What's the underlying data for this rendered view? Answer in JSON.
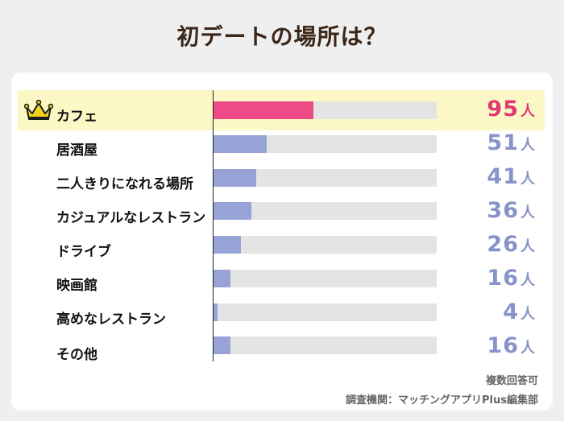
{
  "title": "初デートの場所は？",
  "unit": "人",
  "colors": {
    "highlight_bar": "#ee4a86",
    "bar": "#97a3d6",
    "highlight_text": "#e0386f",
    "text": "#8793c9",
    "track": "#e4e4e4",
    "highlight_row": "#fbf8c6"
  },
  "chart_data": {
    "type": "bar",
    "orientation": "horizontal",
    "title": "初デートの場所は？",
    "categories": [
      "カフェ",
      "居酒屋",
      "二人きりになれる場所",
      "カジュアルなレストラン",
      "ドライブ",
      "映画館",
      "高めなレストラン",
      "その他"
    ],
    "values": [
      95,
      51,
      41,
      36,
      26,
      16,
      4,
      16
    ],
    "unit": "人",
    "xlim": [
      0,
      213
    ],
    "highlight_index": 0,
    "highlight_icon": "crown-icon",
    "grid": false
  },
  "notes": {
    "multi": "複数回答可",
    "source": "調査機関：マッチングアプリPlus編集部"
  }
}
